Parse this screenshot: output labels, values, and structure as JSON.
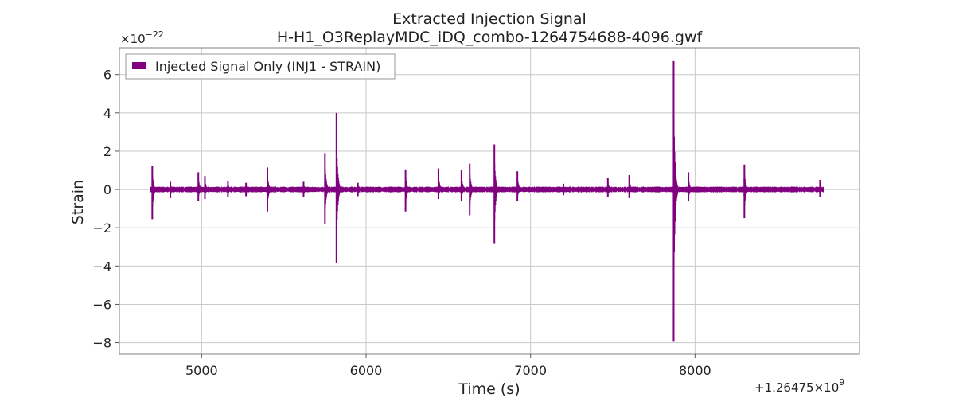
{
  "chart_data": {
    "type": "line",
    "title": "Extracted Injection Signal",
    "subtitle": "H-H1_O3ReplayMDC_iDQ_combo-1264754688-4096.gwf",
    "xlabel": "Time (s)",
    "ylabel": "Strain",
    "x_offset_label": "+1.26475×10",
    "x_offset_exp": "9",
    "y_scale_label": "×10",
    "y_scale_exp": "−22",
    "xlim": [
      4500,
      9000
    ],
    "ylim": [
      -8.6,
      7.4
    ],
    "x_ticks": [
      5000,
      6000,
      7000,
      8000
    ],
    "x_tick_labels": [
      "5000",
      "6000",
      "7000",
      "8000"
    ],
    "y_ticks": [
      -8,
      -6,
      -4,
      -2,
      0,
      2,
      4,
      6
    ],
    "y_tick_labels": [
      "−8",
      "−6",
      "−4",
      "−2",
      "0",
      "2",
      "4",
      "6"
    ],
    "grid": true,
    "legend_position": "top-left",
    "series": [
      {
        "name": "Injected Signal Only (INJ1 - STRAIN)",
        "color": "#800080",
        "x_range": [
          4688,
          8784
        ],
        "baseline_amplitude": 0.15,
        "bursts": [
          {
            "t": 4700,
            "max": 1.25,
            "min": -1.55
          },
          {
            "t": 4810,
            "max": 0.4,
            "min": -0.45
          },
          {
            "t": 4980,
            "max": 0.9,
            "min": -0.6
          },
          {
            "t": 5020,
            "max": 0.7,
            "min": -0.5
          },
          {
            "t": 5160,
            "max": 0.45,
            "min": -0.4
          },
          {
            "t": 5270,
            "max": 0.35,
            "min": -0.35
          },
          {
            "t": 5400,
            "max": 1.15,
            "min": -1.15
          },
          {
            "t": 5620,
            "max": 0.4,
            "min": -0.4
          },
          {
            "t": 5750,
            "max": 1.9,
            "min": -1.8
          },
          {
            "t": 5820,
            "max": 4.0,
            "min": -3.85
          },
          {
            "t": 5950,
            "max": 0.35,
            "min": -0.35
          },
          {
            "t": 6240,
            "max": 1.05,
            "min": -1.15
          },
          {
            "t": 6440,
            "max": 1.1,
            "min": -0.5
          },
          {
            "t": 6580,
            "max": 1.0,
            "min": -0.6
          },
          {
            "t": 6630,
            "max": 1.35,
            "min": -1.35
          },
          {
            "t": 6780,
            "max": 2.35,
            "min": -2.8
          },
          {
            "t": 6920,
            "max": 0.95,
            "min": -0.6
          },
          {
            "t": 7200,
            "max": 0.3,
            "min": -0.3
          },
          {
            "t": 7470,
            "max": 0.6,
            "min": -0.4
          },
          {
            "t": 7600,
            "max": 0.75,
            "min": -0.45
          },
          {
            "t": 7870,
            "max": 6.7,
            "min": -7.95
          },
          {
            "t": 7960,
            "max": 0.9,
            "min": -0.6
          },
          {
            "t": 8300,
            "max": 0.6,
            "min": -0.35
          },
          {
            "t": 8300,
            "max": 1.3,
            "min": -1.5
          },
          {
            "t": 8760,
            "max": 0.5,
            "min": -0.4
          }
        ]
      }
    ]
  }
}
